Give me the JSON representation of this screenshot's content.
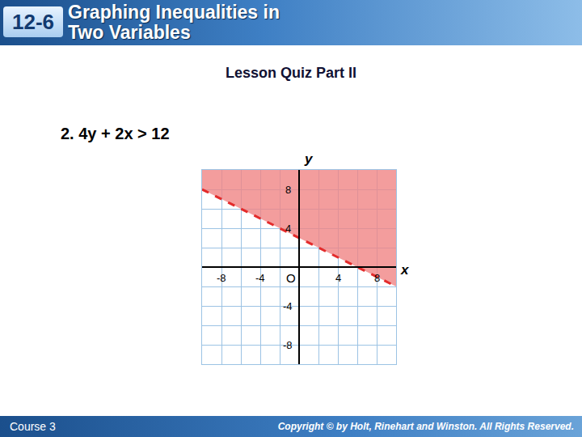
{
  "slide": {
    "lesson_number": "12-6",
    "title_lines": [
      "Graphing Inequalities in",
      "Two Variables"
    ],
    "subtitle": "Lesson Quiz Part II",
    "problem": "2. 4y + 2x > 12",
    "footer_left": "Course 3",
    "footer_right": "Copyright © by Holt, Rinehart and Winston. All Rights Reserved."
  },
  "chart_data": {
    "type": "line",
    "x_label": "x",
    "y_label": "y",
    "x": [
      -10,
      10
    ],
    "series": [
      {
        "type": "area",
        "color": "#f08585",
        "values": [
          8,
          -2
        ]
      },
      {
        "type": "line",
        "color": "#e32b2b",
        "line_style": "dashed",
        "values": [
          8,
          -2
        ]
      }
    ],
    "xlim": [
      -10,
      10
    ],
    "ylim": [
      -10,
      10
    ],
    "xticks": [
      -8,
      -4,
      {
        "value": 0,
        "label": "O"
      },
      4,
      8
    ],
    "yticks": [
      -8,
      -4,
      4,
      8
    ],
    "grid": true
  }
}
